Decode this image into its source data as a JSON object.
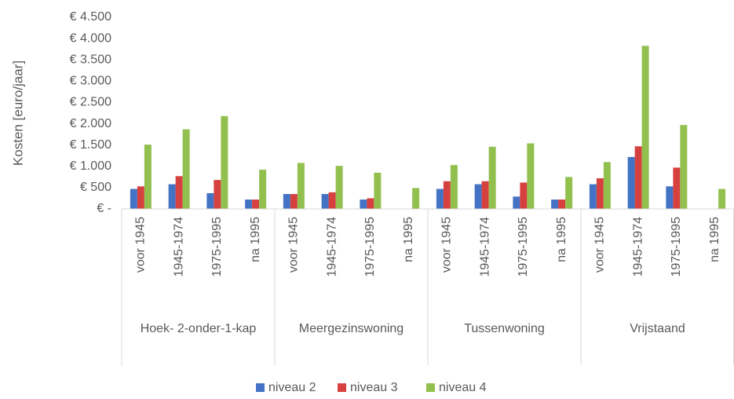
{
  "chart_data": {
    "type": "bar",
    "y_label": "Kosten [euro/jaar]",
    "groups": [
      "Hoek- 2-onder-1-kap",
      "Meergezinswoning",
      "Tussenwoning",
      "Vrijstaand"
    ],
    "categories": [
      "voor 1945",
      "1945-1974",
      "1975-1995",
      "na 1995",
      "voor 1945",
      "1945-1974",
      "1975-1995",
      "na 1995",
      "voor 1945",
      "1945-1974",
      "1975-1995",
      "na 1995",
      "voor 1945",
      "1945-1974",
      "1975-1995",
      "na 1995"
    ],
    "series": [
      {
        "name": "niveau 2",
        "color": "#4472c4",
        "values": [
          470,
          580,
          370,
          220,
          350,
          350,
          220,
          null,
          470,
          580,
          290,
          220,
          580,
          1220,
          530,
          null
        ]
      },
      {
        "name": "niveau 3",
        "color": "#d6413f",
        "values": [
          530,
          770,
          680,
          220,
          350,
          390,
          250,
          null,
          650,
          650,
          620,
          220,
          720,
          1470,
          970,
          null
        ]
      },
      {
        "name": "niveau 4",
        "color": "#92c04f",
        "values": [
          1510,
          1870,
          2180,
          920,
          1080,
          1010,
          850,
          490,
          1030,
          1460,
          1540,
          750,
          1100,
          3830,
          1970,
          470
        ]
      }
    ],
    "ylim": [
      0,
      4500
    ],
    "yticks": [
      {
        "value": 0,
        "label": "€ -"
      },
      {
        "value": 500,
        "label": "€ 500"
      },
      {
        "value": 1000,
        "label": "€ 1.000"
      },
      {
        "value": 1500,
        "label": "€ 1.500"
      },
      {
        "value": 2000,
        "label": "€ 2.000"
      },
      {
        "value": 2500,
        "label": "€ 2.500"
      },
      {
        "value": 3000,
        "label": "€ 3.000"
      },
      {
        "value": 3500,
        "label": "€ 3.500"
      },
      {
        "value": 4000,
        "label": "€ 4.000"
      },
      {
        "value": 4500,
        "label": "€ 4.500"
      }
    ],
    "grid": false,
    "legend": "bottom"
  }
}
